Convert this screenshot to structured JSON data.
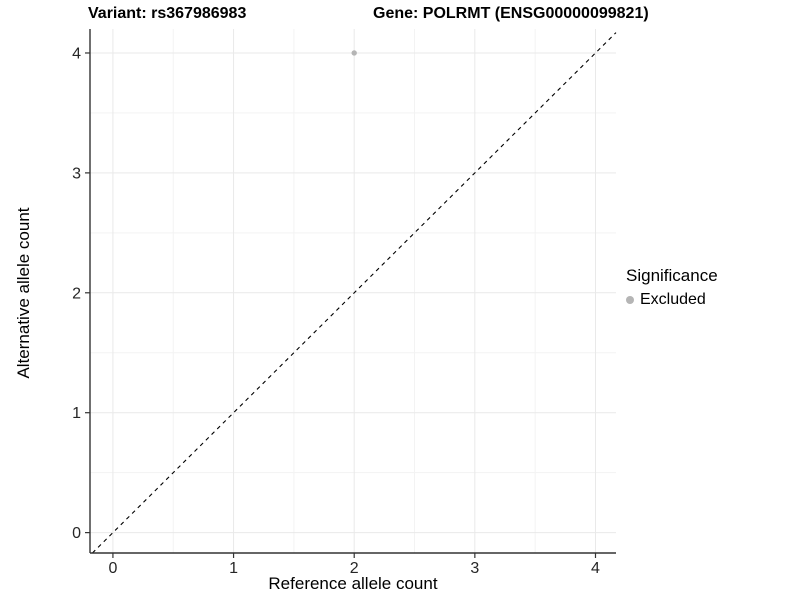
{
  "figure": {
    "title_left": "Variant: rs367986983",
    "title_right": "Gene: POLRMT (ENSG00000099821)"
  },
  "legend": {
    "title": "Significance",
    "items": [
      {
        "label": "Excluded",
        "color": "#b5b5b5",
        "marker": "circle"
      }
    ]
  },
  "colors": {
    "point_excluded": "#b5b5b5",
    "grid_major": "#e9e9e9",
    "grid_minor": "#f3f3f3",
    "axis_line": "#333333",
    "tick_text": "#262626",
    "reference_line": "#000000",
    "background": "#ffffff"
  },
  "chart_data": {
    "type": "scatter",
    "title": "Variant: rs367986983 — Gene: POLRMT (ENSG00000099821)",
    "xlabel": "Reference allele count",
    "ylabel": "Alternative allele count",
    "xlim": [
      -0.19,
      4.17
    ],
    "ylim": [
      -0.17,
      4.2
    ],
    "x_ticks": [
      0,
      1,
      2,
      3,
      4
    ],
    "y_ticks": [
      0,
      1,
      2,
      3,
      4
    ],
    "x_minor_gridlines": [
      0.5,
      1.5,
      2.5,
      3.5
    ],
    "y_minor_gridlines": [
      0.5,
      1.5,
      2.5,
      3.5
    ],
    "grid": true,
    "legend_position": "right",
    "series": [
      {
        "name": "Excluded",
        "color": "#b5b5b5",
        "points": [
          {
            "x": 2,
            "y": 4
          }
        ]
      }
    ],
    "reference_line": {
      "kind": "identity (y = x)",
      "style": "dashed",
      "color": "#000000",
      "from": [
        -0.17,
        -0.17
      ],
      "to": [
        4.17,
        4.17
      ]
    }
  }
}
